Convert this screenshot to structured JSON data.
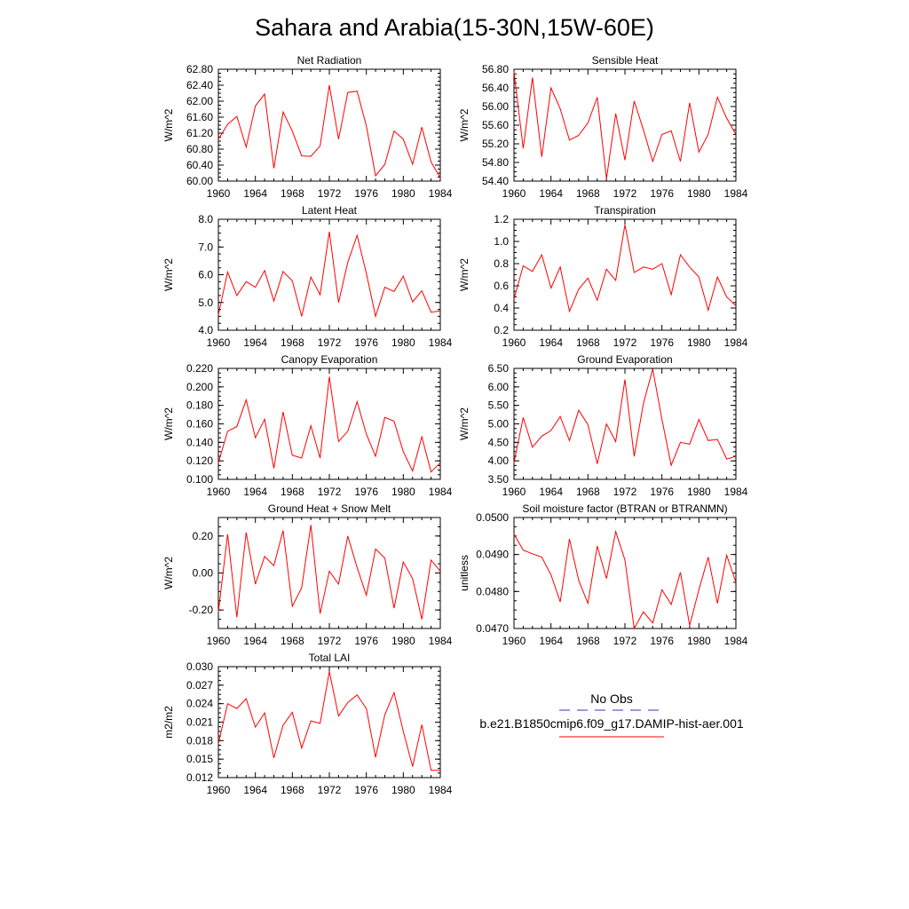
{
  "page_title": "Sahara and Arabia(15-30N,15W-60E)",
  "colors": {
    "model": "#ff0000",
    "obs": "#3333cc",
    "axis": "#000000"
  },
  "legend": {
    "obs_label": "No Obs",
    "model_label": "b.e21.B1850cmip6.f09_g17.DAMIP-hist-aer.001"
  },
  "chart_data": [
    {
      "type": "line",
      "title": "Net Radiation",
      "ylabel": "W/m^2",
      "xlim": [
        1960,
        1984
      ],
      "xticks": [
        1960,
        1964,
        1968,
        1972,
        1976,
        1980,
        1984
      ],
      "ylim": [
        60.0,
        62.8
      ],
      "yticks": [
        "62.80",
        "62.40",
        "62.00",
        "61.60",
        "61.20",
        "60.80",
        "60.40",
        "60.00"
      ],
      "series": [
        {
          "x": [
            1960,
            1961,
            1962,
            1963,
            1964,
            1965,
            1966,
            1967,
            1968,
            1969,
            1970,
            1971,
            1972,
            1973,
            1974,
            1975,
            1976,
            1977,
            1978,
            1979,
            1980,
            1981,
            1982,
            1983,
            1984
          ],
          "values": [
            61.05,
            61.42,
            61.62,
            60.85,
            61.88,
            62.18,
            60.32,
            61.73,
            61.25,
            60.63,
            60.62,
            60.88,
            62.4,
            61.05,
            62.22,
            62.25,
            61.38,
            60.13,
            60.42,
            61.25,
            61.05,
            60.42,
            61.35,
            60.48,
            60.08
          ]
        }
      ]
    },
    {
      "type": "line",
      "title": "Sensible Heat",
      "ylabel": "W/m^2",
      "xlim": [
        1960,
        1984
      ],
      "xticks": [
        1960,
        1964,
        1968,
        1972,
        1976,
        1980,
        1984
      ],
      "ylim": [
        54.4,
        56.8
      ],
      "yticks": [
        "56.80",
        "56.40",
        "56.00",
        "55.60",
        "55.20",
        "54.80",
        "54.40"
      ],
      "series": [
        {
          "x": [
            1960,
            1961,
            1962,
            1963,
            1964,
            1965,
            1966,
            1967,
            1968,
            1969,
            1970,
            1971,
            1972,
            1973,
            1974,
            1975,
            1976,
            1977,
            1978,
            1979,
            1980,
            1981,
            1982,
            1983,
            1984
          ],
          "values": [
            56.75,
            55.1,
            56.62,
            54.92,
            56.4,
            55.95,
            55.28,
            55.38,
            55.65,
            56.2,
            54.45,
            55.85,
            54.85,
            56.12,
            55.5,
            54.82,
            55.4,
            55.48,
            54.82,
            56.08,
            55.02,
            55.4,
            56.2,
            55.75,
            55.4
          ]
        }
      ]
    },
    {
      "type": "line",
      "title": "Latent Heat",
      "ylabel": "W/m^2",
      "xlim": [
        1960,
        1984
      ],
      "xticks": [
        1960,
        1964,
        1968,
        1972,
        1976,
        1980,
        1984
      ],
      "ylim": [
        4.0,
        8.0
      ],
      "yticks": [
        "8.0",
        "7.0",
        "6.0",
        "5.0",
        "4.0"
      ],
      "series": [
        {
          "x": [
            1960,
            1961,
            1962,
            1963,
            1964,
            1965,
            1966,
            1967,
            1968,
            1969,
            1970,
            1971,
            1972,
            1973,
            1974,
            1975,
            1976,
            1977,
            1978,
            1979,
            1980,
            1981,
            1982,
            1983,
            1984
          ],
          "values": [
            4.55,
            6.1,
            5.25,
            5.75,
            5.55,
            6.15,
            5.05,
            6.12,
            5.78,
            4.5,
            5.92,
            5.28,
            7.55,
            5.0,
            6.45,
            7.42,
            6.05,
            4.5,
            5.55,
            5.4,
            5.95,
            5.02,
            5.42,
            4.65,
            4.7
          ]
        }
      ]
    },
    {
      "type": "line",
      "title": "Transpiration",
      "ylabel": "W/m^2",
      "xlim": [
        1960,
        1984
      ],
      "xticks": [
        1960,
        1964,
        1968,
        1972,
        1976,
        1980,
        1984
      ],
      "ylim": [
        0.2,
        1.2
      ],
      "yticks": [
        "1.2",
        "1.0",
        "0.8",
        "0.6",
        "0.4",
        "0.2"
      ],
      "series": [
        {
          "x": [
            1960,
            1961,
            1962,
            1963,
            1964,
            1965,
            1966,
            1967,
            1968,
            1969,
            1970,
            1971,
            1972,
            1973,
            1974,
            1975,
            1976,
            1977,
            1978,
            1979,
            1980,
            1981,
            1982,
            1983,
            1984
          ],
          "values": [
            0.48,
            0.78,
            0.73,
            0.88,
            0.58,
            0.77,
            0.37,
            0.57,
            0.67,
            0.47,
            0.75,
            0.65,
            1.15,
            0.72,
            0.77,
            0.75,
            0.8,
            0.52,
            0.88,
            0.77,
            0.68,
            0.38,
            0.68,
            0.5,
            0.42
          ]
        }
      ]
    },
    {
      "type": "line",
      "title": "Canopy Evaporation",
      "ylabel": "W/m^2",
      "xlim": [
        1960,
        1984
      ],
      "xticks": [
        1960,
        1964,
        1968,
        1972,
        1976,
        1980,
        1984
      ],
      "ylim": [
        0.1,
        0.22
      ],
      "yticks": [
        "0.220",
        "0.200",
        "0.180",
        "0.160",
        "0.140",
        "0.120",
        "0.100"
      ],
      "series": [
        {
          "x": [
            1960,
            1961,
            1962,
            1963,
            1964,
            1965,
            1966,
            1967,
            1968,
            1969,
            1970,
            1971,
            1972,
            1973,
            1974,
            1975,
            1976,
            1977,
            1978,
            1979,
            1980,
            1981,
            1982,
            1983,
            1984
          ],
          "values": [
            0.118,
            0.152,
            0.157,
            0.186,
            0.145,
            0.165,
            0.112,
            0.173,
            0.126,
            0.123,
            0.158,
            0.123,
            0.211,
            0.141,
            0.152,
            0.184,
            0.149,
            0.125,
            0.167,
            0.163,
            0.13,
            0.109,
            0.146,
            0.108,
            0.118
          ]
        }
      ]
    },
    {
      "type": "line",
      "title": "Ground Evaporation",
      "ylabel": "W/m^2",
      "xlim": [
        1960,
        1984
      ],
      "xticks": [
        1960,
        1964,
        1968,
        1972,
        1976,
        1980,
        1984
      ],
      "ylim": [
        3.5,
        6.5
      ],
      "yticks": [
        "6.50",
        "6.00",
        "5.50",
        "5.00",
        "4.50",
        "4.00",
        "3.50"
      ],
      "series": [
        {
          "x": [
            1960,
            1961,
            1962,
            1963,
            1964,
            1965,
            1966,
            1967,
            1968,
            1969,
            1970,
            1971,
            1972,
            1973,
            1974,
            1975,
            1976,
            1977,
            1978,
            1979,
            1980,
            1981,
            1982,
            1983,
            1984
          ],
          "values": [
            3.95,
            5.17,
            4.37,
            4.67,
            4.82,
            5.2,
            4.55,
            5.37,
            4.98,
            3.92,
            5.0,
            4.52,
            6.2,
            4.12,
            5.55,
            6.48,
            5.12,
            3.88,
            4.5,
            4.45,
            5.12,
            4.55,
            4.58,
            4.05,
            4.12
          ]
        }
      ]
    },
    {
      "type": "line",
      "title": "Ground Heat + Snow Melt",
      "ylabel": "W/m^2",
      "xlim": [
        1960,
        1984
      ],
      "xticks": [
        1960,
        1964,
        1968,
        1972,
        1976,
        1980,
        1984
      ],
      "ylim": [
        -0.3,
        0.3
      ],
      "yticks": [
        "0.20",
        "0.00",
        "-0.20"
      ],
      "yticks_values": [
        0.2,
        0.0,
        -0.2
      ],
      "series": [
        {
          "x": [
            1960,
            1961,
            1962,
            1963,
            1964,
            1965,
            1966,
            1967,
            1968,
            1969,
            1970,
            1971,
            1972,
            1973,
            1974,
            1975,
            1976,
            1977,
            1978,
            1979,
            1980,
            1981,
            1982,
            1983,
            1984
          ],
          "values": [
            -0.21,
            0.21,
            -0.24,
            0.22,
            -0.06,
            0.09,
            0.04,
            0.23,
            -0.18,
            -0.08,
            0.26,
            -0.22,
            0.01,
            -0.06,
            0.2,
            0.03,
            -0.12,
            0.13,
            0.08,
            -0.19,
            0.06,
            -0.03,
            -0.25,
            0.07,
            0.01
          ]
        }
      ]
    },
    {
      "type": "line",
      "title": "Soil moisture factor (BTRAN or BTRANMN)",
      "ylabel": "unitless",
      "xlim": [
        1960,
        1984
      ],
      "xticks": [
        1960,
        1964,
        1968,
        1972,
        1976,
        1980,
        1984
      ],
      "ylim": [
        0.047,
        0.05
      ],
      "yticks": [
        "0.0500",
        "0.0490",
        "0.0480",
        "0.0470"
      ],
      "series": [
        {
          "x": [
            1960,
            1961,
            1962,
            1963,
            1964,
            1965,
            1966,
            1967,
            1968,
            1969,
            1970,
            1971,
            1972,
            1973,
            1974,
            1975,
            1976,
            1977,
            1978,
            1979,
            1980,
            1981,
            1982,
            1983,
            1984
          ],
          "values": [
            0.04955,
            0.04912,
            0.04902,
            0.04893,
            0.04845,
            0.04772,
            0.04942,
            0.0483,
            0.04768,
            0.04923,
            0.04835,
            0.04962,
            0.04885,
            0.047,
            0.04745,
            0.04715,
            0.04805,
            0.04765,
            0.04852,
            0.04708,
            0.04805,
            0.04893,
            0.04768,
            0.04898,
            0.04825
          ]
        }
      ]
    },
    {
      "type": "line",
      "title": "Total LAI",
      "ylabel": "m2/m2",
      "xlim": [
        1960,
        1984
      ],
      "xticks": [
        1960,
        1964,
        1968,
        1972,
        1976,
        1980,
        1984
      ],
      "ylim": [
        0.012,
        0.03
      ],
      "yticks": [
        "0.030",
        "0.027",
        "0.024",
        "0.021",
        "0.018",
        "0.015",
        "0.012"
      ],
      "series": [
        {
          "x": [
            1960,
            1961,
            1962,
            1963,
            1964,
            1965,
            1966,
            1967,
            1968,
            1969,
            1970,
            1971,
            1972,
            1973,
            1974,
            1975,
            1976,
            1977,
            1978,
            1979,
            1980,
            1981,
            1982,
            1983,
            1984
          ],
          "values": [
            0.0175,
            0.024,
            0.0232,
            0.0248,
            0.0202,
            0.0225,
            0.0152,
            0.0205,
            0.0226,
            0.0168,
            0.0212,
            0.0208,
            0.0292,
            0.022,
            0.0242,
            0.0254,
            0.0232,
            0.0153,
            0.0222,
            0.0258,
            0.0195,
            0.0138,
            0.0206,
            0.0132,
            0.0132
          ]
        }
      ]
    }
  ]
}
